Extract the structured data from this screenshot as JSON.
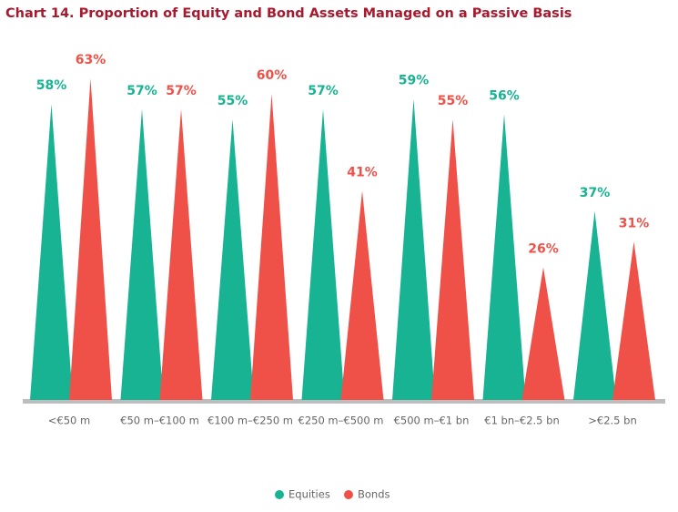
{
  "chart_data": {
    "type": "spike",
    "title": "Chart 14. Proportion of Equity and Bond Assets Managed on a Passive Basis",
    "categories": [
      "<€50 m",
      "€50 m–€100 m",
      "€100 m–€250 m",
      "€250 m–€500 m",
      "€500 m–€1 bn",
      "€1 bn–€2.5 bn",
      ">€2.5 bn"
    ],
    "series": [
      {
        "name": "Equities",
        "color": "#17b392",
        "values": [
          58,
          57,
          55,
          57,
          59,
          56,
          37
        ],
        "value_labels": [
          "58%",
          "57%",
          "55%",
          "57%",
          "59%",
          "56%",
          "37%"
        ]
      },
      {
        "name": "Bonds",
        "color": "#ef5148",
        "values": [
          63,
          57,
          60,
          41,
          55,
          26,
          31
        ],
        "value_labels": [
          "63%",
          "57%",
          "60%",
          "41%",
          "55%",
          "26%",
          "31%"
        ]
      }
    ]
  }
}
